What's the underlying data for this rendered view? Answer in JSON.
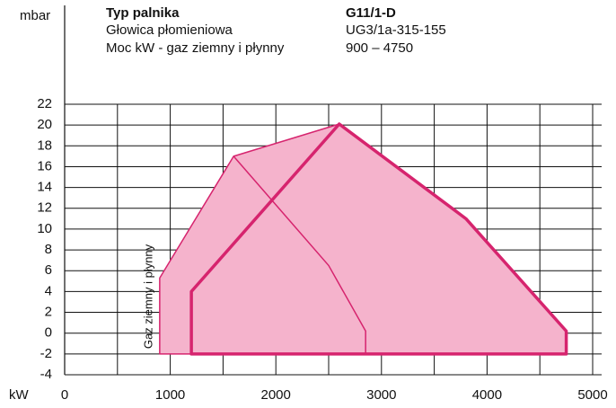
{
  "chart_data": {
    "type": "area",
    "y_unit": "mbar",
    "x_unit": "kW",
    "info": {
      "labels": [
        "Typ palnika",
        "Głowica płomieniowa",
        "Moc kW - gaz ziemny i płynny"
      ],
      "values": [
        "G11/1-D",
        "UG3/1a-315-155",
        "900 – 4750"
      ]
    },
    "annotation": "Gaz ziemny i płynny",
    "xlim": [
      0,
      5000
    ],
    "xticks": [
      0,
      1000,
      2000,
      3000,
      4000,
      5000
    ],
    "xminor": [
      500,
      1500,
      2500,
      3500,
      4500
    ],
    "ylim": [
      -4,
      22
    ],
    "yticks": [
      -4,
      -2,
      0,
      2,
      4,
      6,
      8,
      10,
      12,
      14,
      16,
      18,
      20,
      22
    ],
    "grid": true,
    "series": [
      {
        "color": "#d6246e",
        "fill": "#f5b3cc",
        "closed": true,
        "width": 1.5,
        "x": [
          900,
          900,
          1600,
          2600,
          3800,
          4750,
          4750
        ],
        "values": [
          -2,
          5.3,
          17,
          20.1,
          11,
          0.2,
          -2
        ]
      },
      {
        "color": "#d6246e",
        "closed": true,
        "width": 3.5,
        "x": [
          1200,
          1200,
          2600,
          3800,
          4750,
          4750
        ],
        "values": [
          -2,
          4,
          20.1,
          11,
          0.2,
          -2
        ]
      },
      {
        "color": "#d6246e",
        "closed": false,
        "width": 1.5,
        "x": [
          1600,
          2500,
          2850,
          2850
        ],
        "values": [
          17,
          6.5,
          0.2,
          -2
        ]
      }
    ]
  }
}
